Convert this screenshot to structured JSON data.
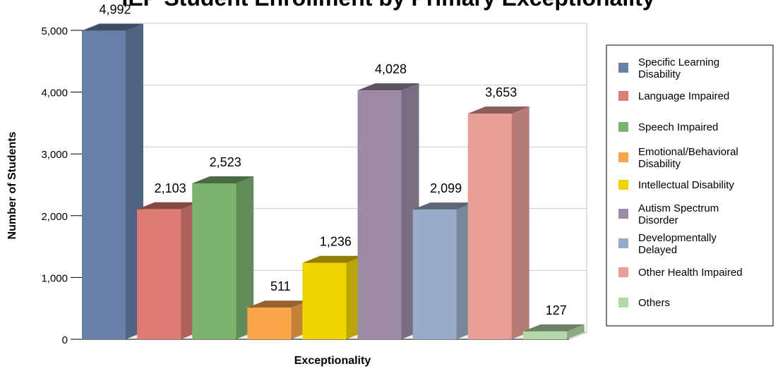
{
  "chart_data": {
    "type": "bar",
    "title": "IEP Student Enrollment by Primary Exceptionality",
    "xlabel": "Exceptionality",
    "ylabel": "Number of Students",
    "ylim": [
      0,
      5000
    ],
    "yticks": [
      "0",
      "1,000",
      "2,000",
      "3,000",
      "4,000",
      "5,000"
    ],
    "grid": true,
    "legend_position": "right",
    "categories": [
      "Specific Learning Disability",
      "Language Impaired",
      "Speech Impaired",
      "Emotional/Behavioral Disability",
      "Intellectual Disability",
      "Autism Spectrum Disorder",
      "Developmentally Delayed",
      "Other Health Impaired",
      "Others"
    ],
    "legend_lines": [
      [
        "Specific Learning",
        "Disability"
      ],
      [
        "Language Impaired"
      ],
      [
        "Speech Impaired"
      ],
      [
        "Emotional/Behavioral",
        "Disability"
      ],
      [
        "Intellectual Disability"
      ],
      [
        "Autism Spectrum",
        "Disorder"
      ],
      [
        "Developmentally",
        "Delayed"
      ],
      [
        "Other Health Impaired"
      ],
      [
        "Others"
      ]
    ],
    "values": [
      4992,
      2103,
      2523,
      511,
      1236,
      4028,
      2099,
      3653,
      127
    ],
    "value_labels": [
      "4,992",
      "2,103",
      "2,523",
      "511",
      "1,236",
      "4,028",
      "2,099",
      "3,653",
      "127"
    ],
    "colors": [
      "#6680a8",
      "#e07b73",
      "#7cb36f",
      "#fba54a",
      "#f0d400",
      "#9d8aa5",
      "#96acc9",
      "#e89e95",
      "#b5d8a8"
    ]
  }
}
